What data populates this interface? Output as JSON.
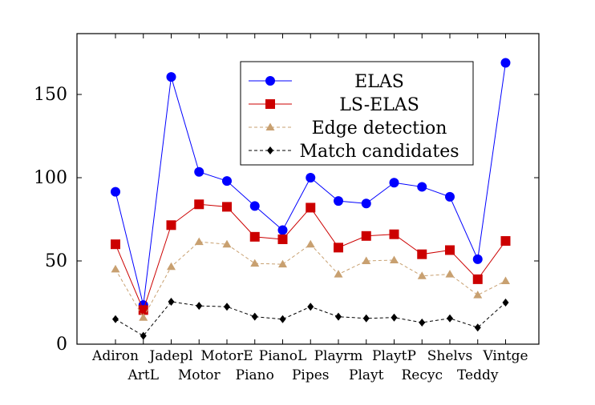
{
  "chart_data": {
    "type": "line",
    "title": "",
    "xlabel": "",
    "ylabel": "",
    "ylim": [
      0,
      180
    ],
    "yticks": [
      0,
      50,
      100,
      150
    ],
    "grid": false,
    "legend_position": "top-right",
    "categories": [
      "Adiron",
      "ArtL",
      "Jadepl",
      "Motor",
      "MotorE",
      "Piano",
      "PianoL",
      "Pipes",
      "Playrm",
      "Playt",
      "PlaytP",
      "Recyc",
      "Shelvs",
      "Teddy",
      "Vintge"
    ],
    "series": [
      {
        "name": "ELAS",
        "color": "#0000ff",
        "marker": "circle",
        "dash": "solid",
        "values": [
          91.5,
          23.5,
          160.5,
          103.5,
          98,
          83,
          68.5,
          100,
          86,
          84.5,
          97,
          94.5,
          88.5,
          51,
          169
        ]
      },
      {
        "name": "LS-ELAS",
        "color": "#cc0000",
        "marker": "square",
        "dash": "solid",
        "values": [
          60,
          20.5,
          71.5,
          84,
          82.5,
          64.5,
          63,
          82,
          58,
          65,
          66,
          54,
          56.5,
          39,
          62
        ]
      },
      {
        "name": "Edge detection",
        "color": "#c8a070",
        "marker": "triangle",
        "dash": "dashed",
        "values": [
          45,
          16,
          46.5,
          61.5,
          60,
          48.5,
          48,
          60,
          42,
          50,
          50.5,
          41,
          42,
          29.5,
          38
        ]
      },
      {
        "name": "Match candidates",
        "color": "#000000",
        "marker": "diamond",
        "dash": "dashed",
        "values": [
          15,
          5,
          25.5,
          23,
          22.5,
          16.5,
          15,
          22.5,
          16.5,
          15.5,
          16,
          13,
          15.5,
          10,
          25
        ]
      }
    ]
  }
}
